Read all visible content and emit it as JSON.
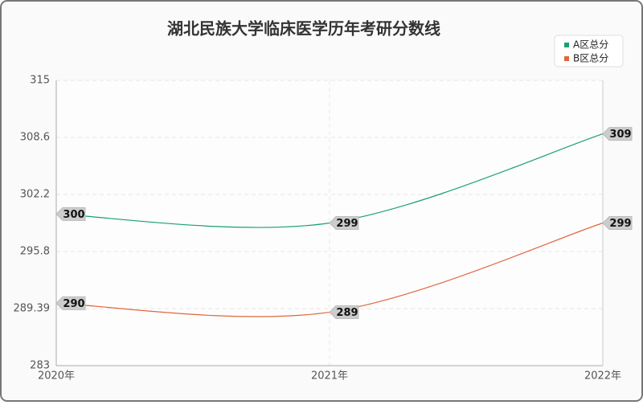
{
  "chart_data": {
    "type": "line",
    "title": "湖北民族大学临床医学历年考研分数线",
    "categories": [
      "2020年",
      "2021年",
      "2022年"
    ],
    "series": [
      {
        "name": "A区总分",
        "color": "#1a9e76",
        "values": [
          300,
          299,
          309
        ]
      },
      {
        "name": "B区总分",
        "color": "#e0673d",
        "values": [
          290,
          289,
          299
        ]
      }
    ],
    "ylim": [
      283,
      315
    ],
    "yticks": [
      283,
      289.39,
      295.8,
      302.2,
      308.6,
      315
    ],
    "grid": true,
    "smooth": true,
    "legend": "top-right"
  }
}
